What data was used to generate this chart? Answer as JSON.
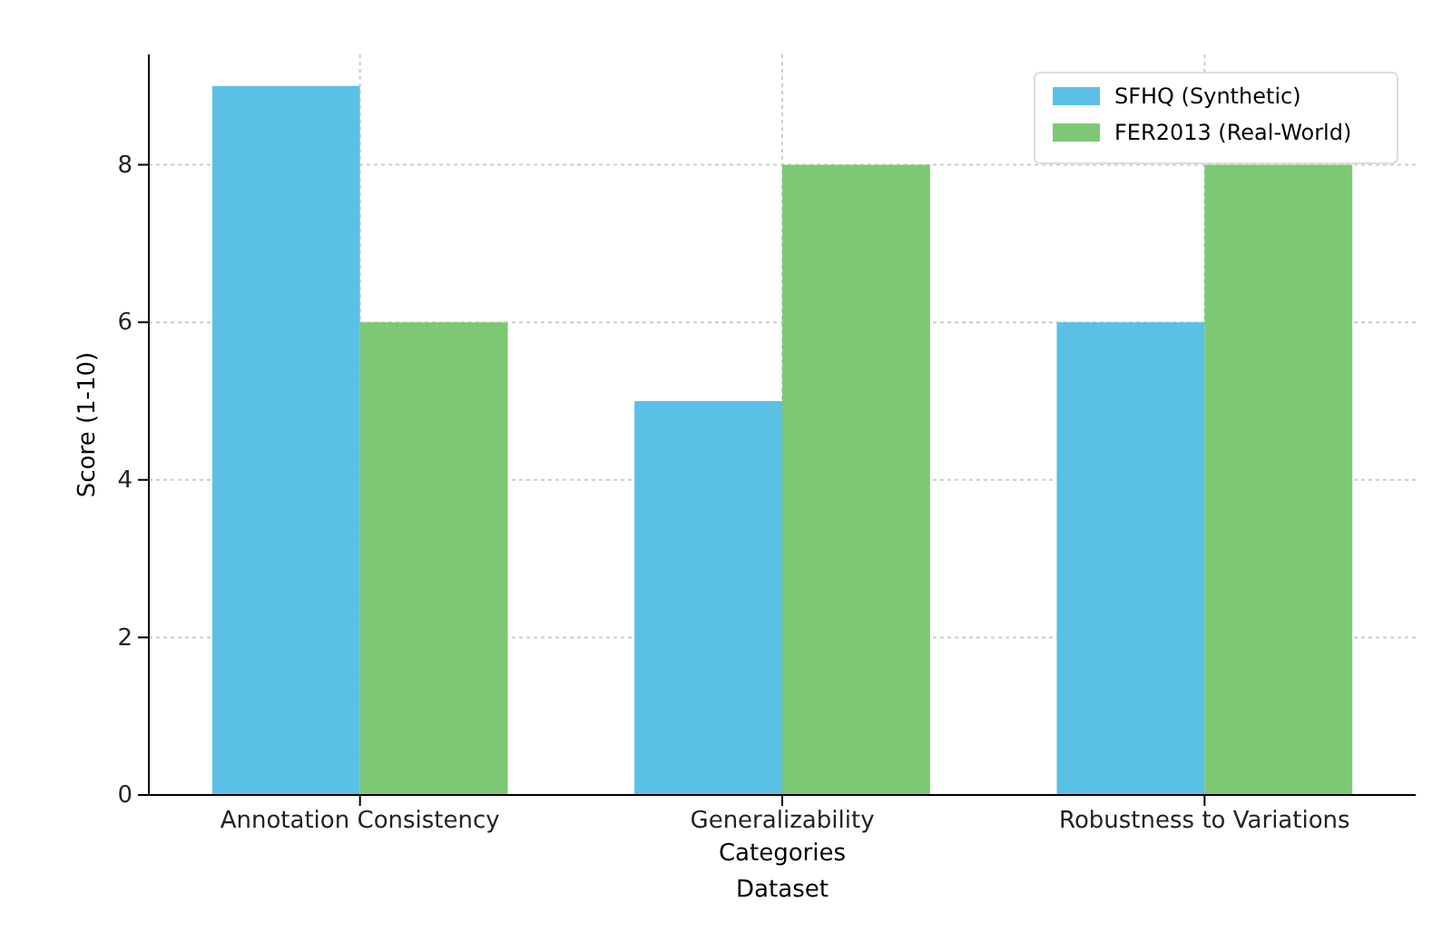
{
  "chart_data": {
    "type": "bar",
    "xlabel": "Categories",
    "ylabel": "Score (1-10)",
    "annotations": [
      "Dataset"
    ],
    "categories": [
      "Annotation Consistency",
      "Generalizability",
      "Robustness to Variations"
    ],
    "series": [
      {
        "name": "SFHQ (Synthetic)",
        "color": "#5bc0e6",
        "values": [
          9,
          5,
          6
        ]
      },
      {
        "name": "FER2013 (Real-World)",
        "color": "#7dc874",
        "values": [
          6,
          8,
          8
        ]
      }
    ],
    "ylim": [
      0,
      9.4
    ],
    "yticks": [
      0,
      2,
      4,
      6,
      8
    ],
    "grid": true,
    "legend": "top right"
  }
}
